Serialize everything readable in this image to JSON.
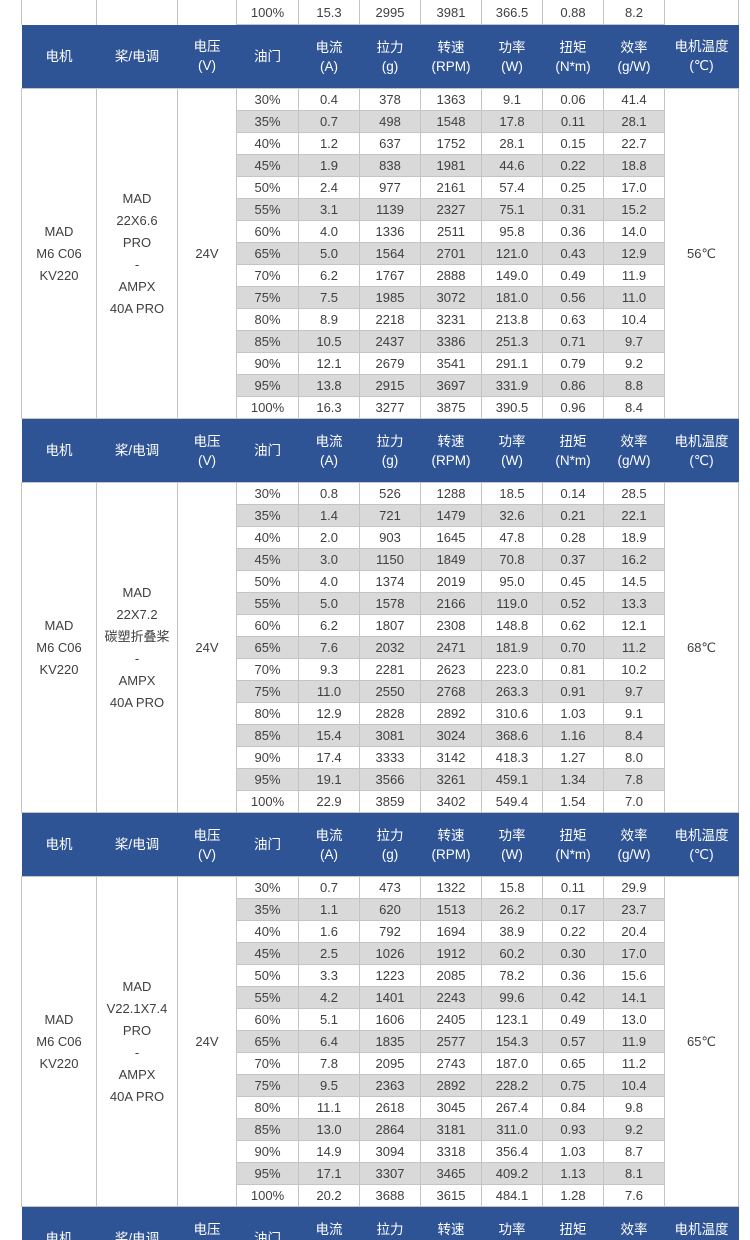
{
  "colors": {
    "header_bg": "#2f5496",
    "header_text": "#ffffff",
    "stripe": "#d9d9d9",
    "grid_line": "#c4c4c4",
    "body_text": "#3f3f3f"
  },
  "table": {
    "column_names": [
      "motor",
      "prop-esc",
      "voltage",
      "throttle",
      "current",
      "thrust",
      "rpm",
      "power",
      "torque",
      "efficiency",
      "motor-temp"
    ],
    "header_columns": [
      {
        "line1": "电机",
        "line2": ""
      },
      {
        "line1": "桨/电调",
        "line2": ""
      },
      {
        "line1": "电压",
        "line2": "(V)"
      },
      {
        "line1": "油门",
        "line2": ""
      },
      {
        "line1": "电流",
        "line2": "(A)"
      },
      {
        "line1": "拉力",
        "line2": "(g)"
      },
      {
        "line1": "转速",
        "line2": "(RPM)"
      },
      {
        "line1": "功率",
        "line2": "(W)"
      },
      {
        "line1": "扭矩",
        "line2": "(N*m)"
      },
      {
        "line1": "效率",
        "line2": "(g/W)"
      },
      {
        "line1": "电机温度",
        "line2": "(℃)"
      }
    ],
    "top_partial_row": [
      "100%",
      "15.3",
      "2995",
      "3981",
      "366.5",
      "0.88",
      "8.2"
    ],
    "sections": [
      {
        "motor_lines": [
          "MAD",
          "M6 C06",
          "KV220"
        ],
        "prop_lines": [
          "MAD",
          "22X6.6",
          "PRO",
          "-",
          "AMPX",
          "40A PRO"
        ],
        "voltage": "24V",
        "temperature": "56℃",
        "rows": [
          [
            "30%",
            "0.4",
            "378",
            "1363",
            "9.1",
            "0.06",
            "41.4"
          ],
          [
            "35%",
            "0.7",
            "498",
            "1548",
            "17.8",
            "0.11",
            "28.1"
          ],
          [
            "40%",
            "1.2",
            "637",
            "1752",
            "28.1",
            "0.15",
            "22.7"
          ],
          [
            "45%",
            "1.9",
            "838",
            "1981",
            "44.6",
            "0.22",
            "18.8"
          ],
          [
            "50%",
            "2.4",
            "977",
            "2161",
            "57.4",
            "0.25",
            "17.0"
          ],
          [
            "55%",
            "3.1",
            "1139",
            "2327",
            "75.1",
            "0.31",
            "15.2"
          ],
          [
            "60%",
            "4.0",
            "1336",
            "2511",
            "95.8",
            "0.36",
            "14.0"
          ],
          [
            "65%",
            "5.0",
            "1564",
            "2701",
            "121.0",
            "0.43",
            "12.9"
          ],
          [
            "70%",
            "6.2",
            "1767",
            "2888",
            "149.0",
            "0.49",
            "11.9"
          ],
          [
            "75%",
            "7.5",
            "1985",
            "3072",
            "181.0",
            "0.56",
            "11.0"
          ],
          [
            "80%",
            "8.9",
            "2218",
            "3231",
            "213.8",
            "0.63",
            "10.4"
          ],
          [
            "85%",
            "10.5",
            "2437",
            "3386",
            "251.3",
            "0.71",
            "9.7"
          ],
          [
            "90%",
            "12.1",
            "2679",
            "3541",
            "291.1",
            "0.79",
            "9.2"
          ],
          [
            "95%",
            "13.8",
            "2915",
            "3697",
            "331.9",
            "0.86",
            "8.8"
          ],
          [
            "100%",
            "16.3",
            "3277",
            "3875",
            "390.5",
            "0.96",
            "8.4"
          ]
        ]
      },
      {
        "motor_lines": [
          "MAD",
          "M6 C06",
          "KV220"
        ],
        "prop_lines": [
          "MAD",
          "22X7.2",
          "碳塑折叠桨",
          "-",
          "AMPX",
          "40A PRO"
        ],
        "voltage": "24V",
        "temperature": "68℃",
        "rows": [
          [
            "30%",
            "0.8",
            "526",
            "1288",
            "18.5",
            "0.14",
            "28.5"
          ],
          [
            "35%",
            "1.4",
            "721",
            "1479",
            "32.6",
            "0.21",
            "22.1"
          ],
          [
            "40%",
            "2.0",
            "903",
            "1645",
            "47.8",
            "0.28",
            "18.9"
          ],
          [
            "45%",
            "3.0",
            "1150",
            "1849",
            "70.8",
            "0.37",
            "16.2"
          ],
          [
            "50%",
            "4.0",
            "1374",
            "2019",
            "95.0",
            "0.45",
            "14.5"
          ],
          [
            "55%",
            "5.0",
            "1578",
            "2166",
            "119.0",
            "0.52",
            "13.3"
          ],
          [
            "60%",
            "6.2",
            "1807",
            "2308",
            "148.8",
            "0.62",
            "12.1"
          ],
          [
            "65%",
            "7.6",
            "2032",
            "2471",
            "181.9",
            "0.70",
            "11.2"
          ],
          [
            "70%",
            "9.3",
            "2281",
            "2623",
            "223.0",
            "0.81",
            "10.2"
          ],
          [
            "75%",
            "11.0",
            "2550",
            "2768",
            "263.3",
            "0.91",
            "9.7"
          ],
          [
            "80%",
            "12.9",
            "2828",
            "2892",
            "310.6",
            "1.03",
            "9.1"
          ],
          [
            "85%",
            "15.4",
            "3081",
            "3024",
            "368.6",
            "1.16",
            "8.4"
          ],
          [
            "90%",
            "17.4",
            "3333",
            "3142",
            "418.3",
            "1.27",
            "8.0"
          ],
          [
            "95%",
            "19.1",
            "3566",
            "3261",
            "459.1",
            "1.34",
            "7.8"
          ],
          [
            "100%",
            "22.9",
            "3859",
            "3402",
            "549.4",
            "1.54",
            "7.0"
          ]
        ]
      },
      {
        "motor_lines": [
          "MAD",
          "M6 C06",
          "KV220"
        ],
        "prop_lines": [
          "MAD",
          "V22.1X7.4",
          "PRO",
          "-",
          "AMPX",
          "40A PRO"
        ],
        "voltage": "24V",
        "temperature": "65℃",
        "rows": [
          [
            "30%",
            "0.7",
            "473",
            "1322",
            "15.8",
            "0.11",
            "29.9"
          ],
          [
            "35%",
            "1.1",
            "620",
            "1513",
            "26.2",
            "0.17",
            "23.7"
          ],
          [
            "40%",
            "1.6",
            "792",
            "1694",
            "38.9",
            "0.22",
            "20.4"
          ],
          [
            "45%",
            "2.5",
            "1026",
            "1912",
            "60.2",
            "0.30",
            "17.0"
          ],
          [
            "50%",
            "3.3",
            "1223",
            "2085",
            "78.2",
            "0.36",
            "15.6"
          ],
          [
            "55%",
            "4.2",
            "1401",
            "2243",
            "99.6",
            "0.42",
            "14.1"
          ],
          [
            "60%",
            "5.1",
            "1606",
            "2405",
            "123.1",
            "0.49",
            "13.0"
          ],
          [
            "65%",
            "6.4",
            "1835",
            "2577",
            "154.3",
            "0.57",
            "11.9"
          ],
          [
            "70%",
            "7.8",
            "2095",
            "2743",
            "187.0",
            "0.65",
            "11.2"
          ],
          [
            "75%",
            "9.5",
            "2363",
            "2892",
            "228.2",
            "0.75",
            "10.4"
          ],
          [
            "80%",
            "11.1",
            "2618",
            "3045",
            "267.4",
            "0.84",
            "9.8"
          ],
          [
            "85%",
            "13.0",
            "2864",
            "3181",
            "311.0",
            "0.93",
            "9.2"
          ],
          [
            "90%",
            "14.9",
            "3094",
            "3318",
            "356.4",
            "1.03",
            "8.7"
          ],
          [
            "95%",
            "17.1",
            "3307",
            "3465",
            "409.2",
            "1.13",
            "8.1"
          ],
          [
            "100%",
            "20.2",
            "3688",
            "3615",
            "484.1",
            "1.28",
            "7.6"
          ]
        ]
      }
    ],
    "bottom_partial_header": true
  }
}
